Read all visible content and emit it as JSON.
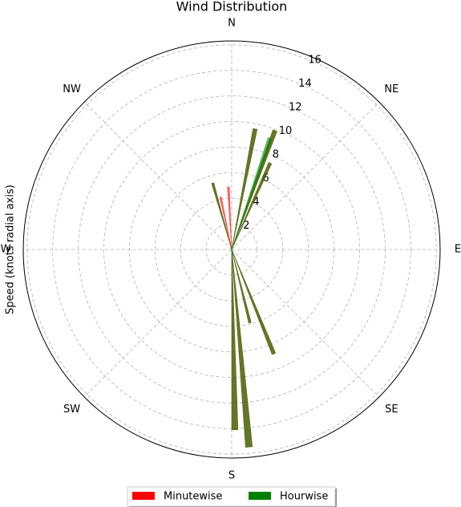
{
  "chart_data": {
    "type": "polar-bar",
    "title": "Wind Distribution",
    "ylabel": "Speed (knots radial axis)",
    "xticks": [
      {
        "value": 0,
        "label": "N"
      },
      {
        "value": 45,
        "label": "NE"
      },
      {
        "value": 90,
        "label": "E"
      },
      {
        "value": 135,
        "label": "SE"
      },
      {
        "value": 180,
        "label": "S"
      },
      {
        "value": 225,
        "label": "SW"
      },
      {
        "value": 270,
        "label": "W"
      },
      {
        "value": 315,
        "label": "NW"
      }
    ],
    "ylim": [
      0,
      16.3
    ],
    "yticks": [
      2,
      4,
      6,
      8,
      10,
      12,
      14,
      16
    ],
    "grid": true,
    "legend": "lower center",
    "series": [
      {
        "name": "Minutewise",
        "color": "#ff0000",
        "x": [
          344,
          348,
          357,
          11,
          20,
          24,
          166,
          175,
          179,
          158
        ],
        "values": [
          5.4,
          4.2,
          4.9,
          9.6,
          9.9,
          7.4,
          5.9,
          15.5,
          14.1,
          8.8
        ]
      },
      {
        "name": "Hourwise",
        "color": "#008000",
        "x": [
          344,
          11,
          19,
          20,
          24,
          158,
          166,
          175,
          179
        ],
        "values": [
          5.4,
          9.6,
          9.2,
          9.9,
          7.4,
          8.8,
          5.9,
          15.5,
          14.1
        ]
      }
    ]
  }
}
